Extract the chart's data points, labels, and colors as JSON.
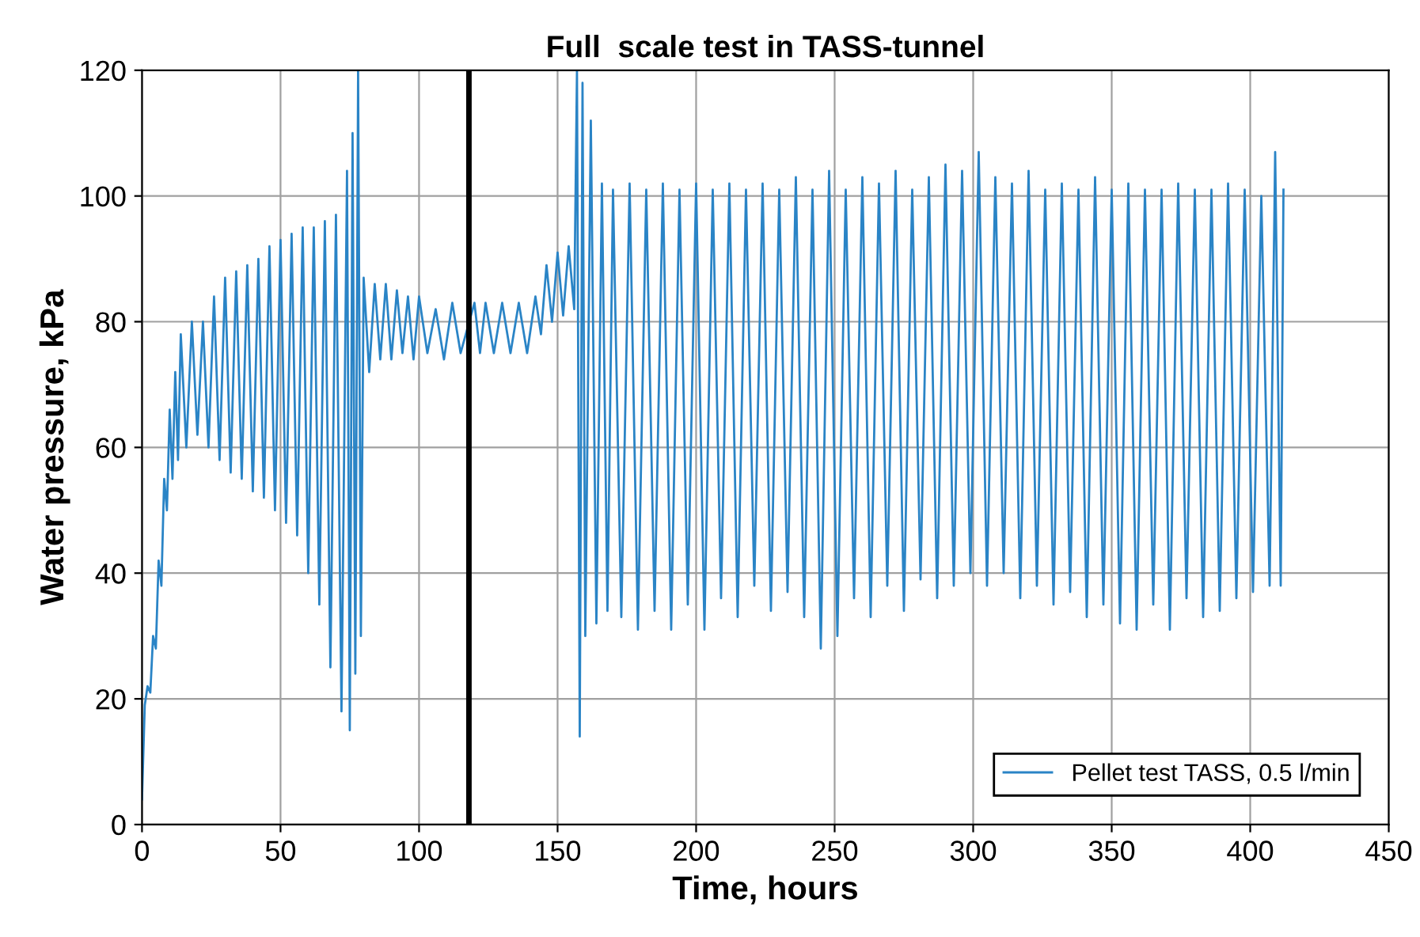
{
  "chart_data": {
    "type": "line",
    "title": "Full  scale test in TASS-tunnel",
    "xlabel": "Time, hours",
    "ylabel": "Water pressure, kPa",
    "xlim": [
      0,
      450
    ],
    "xticks": [
      0,
      50,
      100,
      150,
      200,
      250,
      300,
      350,
      400,
      450
    ],
    "ylim": [
      0,
      120
    ],
    "yticks": [
      0,
      20,
      40,
      60,
      80,
      100,
      120
    ],
    "grid": true,
    "legend": "bottom right",
    "ref_lines": [
      {
        "axis": "x",
        "value": 118,
        "color": "#000000"
      }
    ],
    "series": [
      {
        "name": "Pellet test TASS, 0.5 l/min",
        "color": "#2a84c6",
        "x": [
          0,
          1,
          2,
          3,
          4,
          5,
          6,
          7,
          8,
          9,
          10,
          11,
          12,
          13,
          14,
          16,
          18,
          20,
          22,
          24,
          26,
          28,
          30,
          32,
          34,
          36,
          38,
          40,
          42,
          44,
          46,
          48,
          50,
          52,
          54,
          56,
          58,
          60,
          62,
          64,
          66,
          68,
          70,
          72,
          74,
          75,
          76,
          77,
          78,
          79,
          80,
          82,
          84,
          86,
          88,
          90,
          92,
          94,
          96,
          98,
          100,
          103,
          106,
          109,
          112,
          115,
          120,
          122,
          124,
          127,
          130,
          133,
          136,
          139,
          142,
          144,
          146,
          148,
          150,
          152,
          154,
          156,
          157,
          158,
          159,
          160,
          162,
          164,
          166,
          168,
          170,
          173,
          176,
          179,
          182,
          185,
          188,
          191,
          194,
          197,
          200,
          203,
          206,
          209,
          212,
          215,
          218,
          221,
          224,
          227,
          230,
          233,
          236,
          239,
          242,
          245,
          248,
          251,
          254,
          257,
          260,
          263,
          266,
          269,
          272,
          275,
          278,
          281,
          284,
          287,
          290,
          293,
          296,
          299,
          302,
          305,
          308,
          311,
          314,
          317,
          320,
          323,
          326,
          329,
          332,
          335,
          338,
          341,
          344,
          347,
          350,
          353,
          356,
          359,
          362,
          365,
          368,
          371,
          374,
          377,
          380,
          383,
          386,
          389,
          392,
          395,
          398,
          401,
          404,
          407,
          409,
          411,
          412
        ],
        "values": [
          4,
          19,
          22,
          21,
          30,
          28,
          42,
          38,
          55,
          50,
          66,
          55,
          72,
          58,
          78,
          60,
          80,
          62,
          80,
          60,
          84,
          58,
          87,
          56,
          88,
          55,
          89,
          53,
          90,
          52,
          92,
          50,
          93,
          48,
          94,
          46,
          95,
          40,
          95,
          35,
          96,
          25,
          97,
          18,
          104,
          15,
          110,
          24,
          120,
          30,
          87,
          72,
          86,
          74,
          86,
          74,
          85,
          75,
          84,
          74,
          84,
          75,
          82,
          74,
          83,
          75,
          83,
          75,
          83,
          75,
          83,
          75,
          83,
          75,
          84,
          78,
          89,
          80,
          91,
          81,
          92,
          82,
          120,
          14,
          118,
          30,
          112,
          32,
          102,
          34,
          101,
          33,
          102,
          31,
          101,
          34,
          102,
          31,
          101,
          35,
          102,
          31,
          101,
          36,
          102,
          33,
          101,
          38,
          102,
          34,
          101,
          37,
          103,
          33,
          101,
          28,
          104,
          30,
          101,
          36,
          103,
          33,
          102,
          38,
          104,
          34,
          101,
          39,
          103,
          36,
          105,
          38,
          104,
          40,
          107,
          38,
          103,
          40,
          102,
          36,
          104,
          38,
          101,
          35,
          102,
          37,
          101,
          33,
          103,
          35,
          101,
          32,
          102,
          31,
          101,
          35,
          101,
          31,
          102,
          36,
          101,
          33,
          101,
          34,
          102,
          36,
          101,
          37,
          100,
          38,
          107,
          38,
          101
        ]
      }
    ]
  }
}
